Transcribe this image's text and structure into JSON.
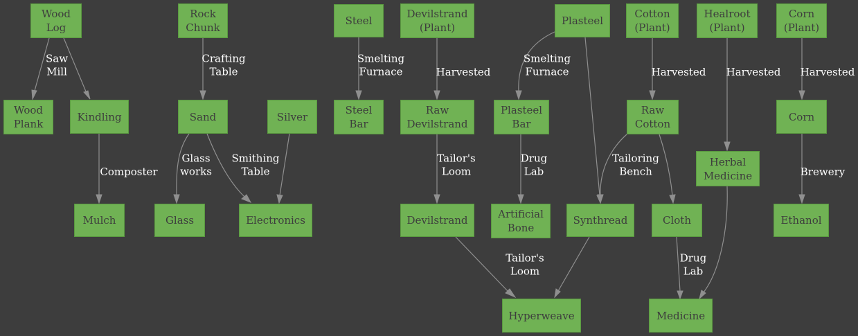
{
  "diagram": {
    "nodes": [
      {
        "id": "wood-log",
        "label": "Wood\nLog"
      },
      {
        "id": "rock-chunk",
        "label": "Rock\nChunk"
      },
      {
        "id": "steel",
        "label": "Steel"
      },
      {
        "id": "devilstrand-plant",
        "label": "Devilstrand\n(Plant)"
      },
      {
        "id": "plasteel",
        "label": "Plasteel"
      },
      {
        "id": "cotton-plant",
        "label": "Cotton\n(Plant)"
      },
      {
        "id": "healroot-plant",
        "label": "Healroot\n(Plant)"
      },
      {
        "id": "corn-plant",
        "label": "Corn\n(Plant)"
      },
      {
        "id": "wood-plank",
        "label": "Wood\nPlank"
      },
      {
        "id": "kindling",
        "label": "Kindling"
      },
      {
        "id": "sand",
        "label": "Sand"
      },
      {
        "id": "silver",
        "label": "Silver"
      },
      {
        "id": "steel-bar",
        "label": "Steel\nBar"
      },
      {
        "id": "raw-devilstrand",
        "label": "Raw\nDevilstrand"
      },
      {
        "id": "plasteel-bar",
        "label": "Plasteel\nBar"
      },
      {
        "id": "raw-cotton",
        "label": "Raw\nCotton"
      },
      {
        "id": "corn",
        "label": "Corn"
      },
      {
        "id": "herbal-medicine",
        "label": "Herbal\nMedicine"
      },
      {
        "id": "mulch",
        "label": "Mulch"
      },
      {
        "id": "glass",
        "label": "Glass"
      },
      {
        "id": "electronics",
        "label": "Electronics"
      },
      {
        "id": "devilstrand",
        "label": "Devilstrand"
      },
      {
        "id": "artificial-bone",
        "label": "Artificial\nBone"
      },
      {
        "id": "synthread",
        "label": "Synthread"
      },
      {
        "id": "cloth",
        "label": "Cloth"
      },
      {
        "id": "ethanol",
        "label": "Ethanol"
      },
      {
        "id": "hyperweave",
        "label": "Hyperweave"
      },
      {
        "id": "medicine",
        "label": "Medicine"
      }
    ],
    "edges": [
      {
        "id": "wood-log-to-wood-plank",
        "from": "wood-log",
        "to": "wood-plank",
        "label": "Saw\nMill"
      },
      {
        "id": "wood-log-to-kindling",
        "from": "wood-log",
        "to": "kindling",
        "label": ""
      },
      {
        "id": "kindling-to-mulch",
        "from": "kindling",
        "to": "mulch",
        "label": "Composter"
      },
      {
        "id": "rock-chunk-to-sand",
        "from": "rock-chunk",
        "to": "sand",
        "label": "Crafting\nTable"
      },
      {
        "id": "sand-to-glass",
        "from": "sand",
        "to": "glass",
        "label": "Glass\nworks"
      },
      {
        "id": "sand-to-electronics",
        "from": "sand",
        "to": "electronics",
        "label": "Smithing\nTable"
      },
      {
        "id": "silver-to-electronics",
        "from": "silver",
        "to": "electronics",
        "label": ""
      },
      {
        "id": "steel-to-steel-bar",
        "from": "steel",
        "to": "steel-bar",
        "label": "Smelting\nFurnace"
      },
      {
        "id": "devilstrand-plant-to-raw-devilstrand",
        "from": "devilstrand-plant",
        "to": "raw-devilstrand",
        "label": "Harvested"
      },
      {
        "id": "raw-devilstrand-to-devilstrand",
        "from": "raw-devilstrand",
        "to": "devilstrand",
        "label": "Tailor's\nLoom"
      },
      {
        "id": "devilstrand-to-hyperweave",
        "from": "devilstrand",
        "to": "hyperweave",
        "label": "Tailor's\nLoom"
      },
      {
        "id": "plasteel-to-plasteel-bar",
        "from": "plasteel",
        "to": "plasteel-bar",
        "label": "Smelting\nFurnace"
      },
      {
        "id": "plasteel-bar-to-artificial-bone",
        "from": "plasteel-bar",
        "to": "artificial-bone",
        "label": "Drug\nLab"
      },
      {
        "id": "plasteel-to-synthread",
        "from": "plasteel",
        "to": "synthread",
        "label": ""
      },
      {
        "id": "synthread-to-hyperweave",
        "from": "synthread",
        "to": "hyperweave",
        "label": ""
      },
      {
        "id": "cotton-plant-to-raw-cotton",
        "from": "cotton-plant",
        "to": "raw-cotton",
        "label": "Harvested"
      },
      {
        "id": "raw-cotton-to-synthread",
        "from": "raw-cotton",
        "to": "synthread",
        "label": "Tailoring\nBench"
      },
      {
        "id": "raw-cotton-to-cloth",
        "from": "raw-cotton",
        "to": "cloth",
        "label": ""
      },
      {
        "id": "cloth-to-medicine",
        "from": "cloth",
        "to": "medicine",
        "label": "Drug\nLab"
      },
      {
        "id": "healroot-plant-to-herbal-medicine",
        "from": "healroot-plant",
        "to": "herbal-medicine",
        "label": "Harvested"
      },
      {
        "id": "herbal-medicine-to-medicine",
        "from": "herbal-medicine",
        "to": "medicine",
        "label": ""
      },
      {
        "id": "corn-plant-to-corn",
        "from": "corn-plant",
        "to": "corn",
        "label": "Harvested"
      },
      {
        "id": "corn-to-ethanol",
        "from": "corn",
        "to": "ethanol",
        "label": "Brewery"
      }
    ]
  }
}
